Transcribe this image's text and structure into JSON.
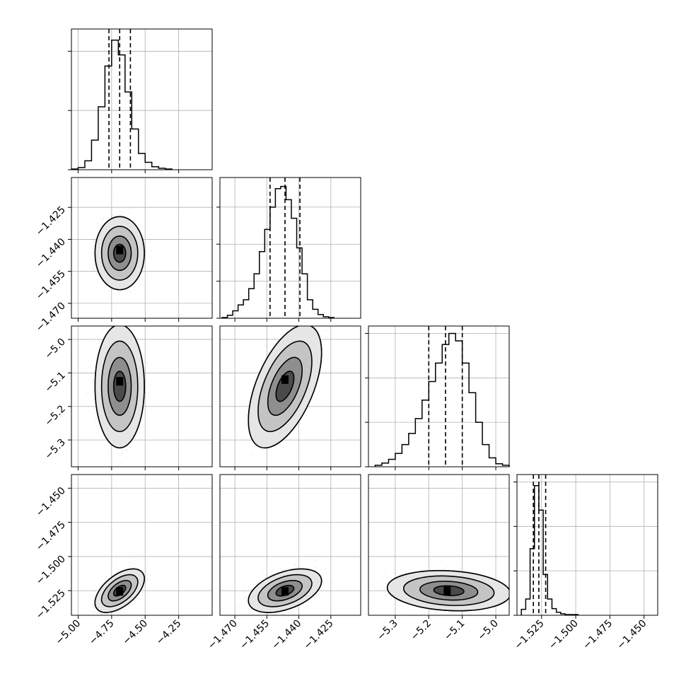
{
  "chart_data": {
    "type": "corner",
    "parameter_count": 4,
    "colors": {
      "line": "#000000",
      "grid": "#b0b0b0",
      "scatter": "#000000",
      "background": "#ffffff"
    },
    "grid": true,
    "ranges": [
      [
        -5.05,
        -4.0
      ],
      [
        -1.477,
        -1.411
      ],
      [
        -5.38,
        -4.96
      ],
      [
        -1.543,
        -1.44
      ]
    ],
    "x_tick_labels": [
      [
        "−5.00",
        "−4.75",
        "−4.50",
        "−4.25"
      ],
      [
        "−1.470",
        "−1.455",
        "−1.440",
        "−1.425"
      ],
      [
        "−5.3",
        "−5.2",
        "−5.1",
        "−5.0"
      ],
      [
        "−1.525",
        "−1.500",
        "−1.475",
        "−1.450"
      ]
    ],
    "y_tick_labels": [
      null,
      [
        "−1.425",
        "−1.440",
        "−1.455",
        "−1.470"
      ],
      [
        "−5.0",
        "−5.1",
        "−5.2",
        "−5.3"
      ],
      [
        "−1.450",
        "−1.475",
        "−1.500",
        "−1.525"
      ]
    ],
    "diagonal": [
      {
        "parameter": 0,
        "bin_edges": [
          -5.05,
          -5.0,
          -4.95,
          -4.9,
          -4.85,
          -4.8,
          -4.75,
          -4.7,
          -4.65,
          -4.6,
          -4.55,
          -4.5,
          -4.45,
          -4.4,
          -4.35,
          -4.3
        ],
        "counts": [
          1,
          3,
          12,
          40,
          85,
          140,
          175,
          155,
          105,
          55,
          22,
          10,
          4,
          2,
          1
        ],
        "ylim": [
          0,
          190
        ],
        "ytick_values": [
          0,
          80,
          160
        ],
        "quantiles": [
          -4.77,
          -4.69,
          -4.61
        ]
      },
      {
        "parameter": 1,
        "bin_edges": [
          -1.476,
          -1.4735,
          -1.471,
          -1.4685,
          -1.466,
          -1.4635,
          -1.461,
          -1.4585,
          -1.456,
          -1.4535,
          -1.451,
          -1.4485,
          -1.446,
          -1.4435,
          -1.441,
          -1.4385,
          -1.436,
          -1.4335,
          -1.431,
          -1.4285,
          -1.426,
          -1.4235
        ],
        "counts": [
          1,
          4,
          10,
          18,
          25,
          40,
          60,
          90,
          120,
          150,
          175,
          178,
          160,
          135,
          95,
          60,
          25,
          12,
          5,
          2,
          1
        ],
        "ylim": [
          0,
          190
        ],
        "ytick_values": [
          0,
          50,
          100,
          150
        ],
        "quantiles": [
          -1.4535,
          -1.4465,
          -1.4395
        ]
      },
      {
        "parameter": 2,
        "bin_edges": [
          -5.36,
          -5.34,
          -5.32,
          -5.3,
          -5.28,
          -5.26,
          -5.24,
          -5.22,
          -5.2,
          -5.18,
          -5.16,
          -5.14,
          -5.12,
          -5.1,
          -5.08,
          -5.06,
          -5.04,
          -5.02,
          -5.0,
          -4.98,
          -4.96
        ],
        "counts": [
          2,
          5,
          10,
          18,
          30,
          45,
          65,
          90,
          115,
          140,
          165,
          180,
          170,
          140,
          100,
          60,
          30,
          12,
          4,
          2
        ],
        "ylim": [
          0,
          190
        ],
        "ytick_values": [
          0,
          60,
          120,
          180
        ],
        "quantiles": [
          -5.2,
          -5.15,
          -5.1
        ]
      },
      {
        "parameter": 3,
        "bin_edges": [
          -1.5398,
          -1.5366,
          -1.5334,
          -1.5302,
          -1.527,
          -1.5238,
          -1.5206,
          -1.5174,
          -1.5142,
          -1.511,
          -1.5078,
          -1.5046,
          -1.5014,
          -1.4982
        ],
        "counts": [
          8,
          22,
          90,
          175,
          142,
          55,
          22,
          9,
          4,
          2,
          1,
          1,
          1
        ],
        "ylim": [
          0,
          190
        ],
        "ytick_values": [
          0,
          60,
          120,
          180
        ],
        "quantiles": [
          -1.531,
          -1.527,
          -1.522
        ]
      }
    ],
    "off_diagonal": [
      {
        "row": 1,
        "col": 0,
        "mean": [
          -4.69,
          -1.4465
        ],
        "std": [
          0.075,
          0.007
        ],
        "correlation": 0.0,
        "peak": [
          -4.69,
          -1.445
        ]
      },
      {
        "row": 2,
        "col": 0,
        "mean": [
          -4.69,
          -5.14
        ],
        "std": [
          0.075,
          0.075
        ],
        "correlation": 0.0,
        "peak": [
          -4.69,
          -5.125
        ]
      },
      {
        "row": 2,
        "col": 1,
        "mean": [
          -1.4465,
          -5.14
        ],
        "std": [
          0.007,
          0.075
        ],
        "correlation": 0.55,
        "peak": [
          -1.4465,
          -5.12
        ]
      },
      {
        "row": 3,
        "col": 0,
        "mean": [
          -4.69,
          -1.525
        ],
        "std": [
          0.075,
          0.0065
        ],
        "correlation": 0.55,
        "peak": [
          -4.69,
          -1.5255
        ]
      },
      {
        "row": 3,
        "col": 1,
        "mean": [
          -1.4465,
          -1.525
        ],
        "std": [
          0.007,
          0.0065
        ],
        "correlation": 0.45,
        "peak": [
          -1.4465,
          -1.5255
        ]
      },
      {
        "row": 3,
        "col": 2,
        "mean": [
          -5.14,
          -1.525
        ],
        "std": [
          0.075,
          0.006
        ],
        "correlation": -0.15,
        "peak": [
          -5.145,
          -1.525
        ]
      }
    ]
  }
}
